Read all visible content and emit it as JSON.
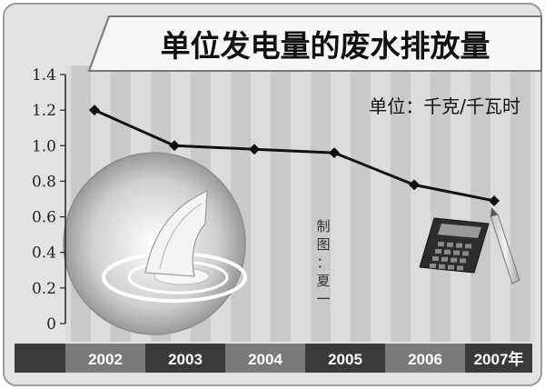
{
  "chart_data": {
    "type": "line",
    "title": "单位发电量的废水排放量",
    "unit_label": "单位：千克/千瓦时",
    "credit": [
      "制",
      "图",
      "：",
      "夏",
      "一"
    ],
    "categories": [
      "2002",
      "2003",
      "2004",
      "2005",
      "2006",
      "2007年"
    ],
    "values": [
      1.2,
      1.0,
      0.98,
      0.96,
      0.78,
      0.69
    ],
    "yticks": [
      "0",
      "0.2",
      "0.4",
      "0.6",
      "0.8",
      "1.0",
      "1.2",
      "1.4"
    ],
    "ylim": [
      0,
      1.4
    ],
    "grid": false,
    "legend": "none"
  },
  "colors": {
    "line": "#111111",
    "background": "#dcdcdc",
    "stripe": "#c9c9c9",
    "axis_band_dark": "#3a3a3a",
    "axis_band_mid": "#7a7a7a"
  }
}
